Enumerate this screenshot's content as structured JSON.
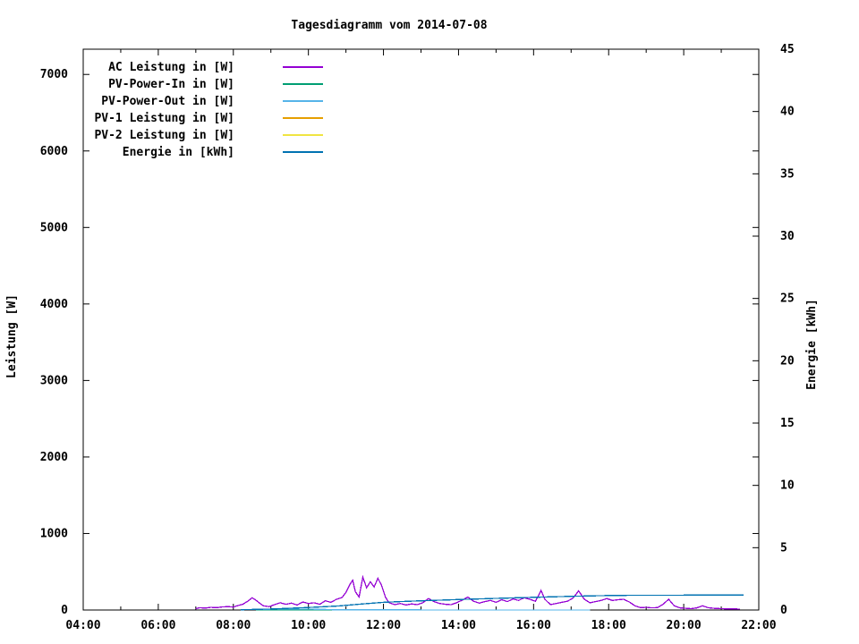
{
  "title": "Tagesdiagramm vom 2014-07-08",
  "chart_data": {
    "type": "line",
    "title": "Tagesdiagramm vom 2014-07-08",
    "background": "#ffffff",
    "grid": false,
    "legend_position": "top-left-inside",
    "x_axis": {
      "unit": "time HH:MM",
      "range_hours": [
        4,
        22
      ],
      "major_step_hours": 2,
      "minor_step_hours": 1,
      "tick_labels": [
        "04:00",
        "06:00",
        "08:00",
        "10:00",
        "12:00",
        "14:00",
        "16:00",
        "18:00",
        "20:00",
        "22:00"
      ]
    },
    "y_left_axis": {
      "label": "Leistung [W]",
      "ticks": [
        0,
        1000,
        2000,
        3000,
        4000,
        5000,
        6000,
        7000
      ],
      "range": [
        0,
        7330
      ]
    },
    "y_right_axis": {
      "label": "Energie [kWh]",
      "ticks": [
        0,
        5,
        10,
        15,
        20,
        25,
        30,
        35,
        40,
        45
      ],
      "range": [
        0,
        45
      ]
    },
    "series": [
      {
        "name": "AC Leistung in [W]",
        "color": "#9400d3",
        "axis": "left",
        "points": [
          [
            7.0,
            18
          ],
          [
            7.1,
            30
          ],
          [
            7.25,
            25
          ],
          [
            7.4,
            35
          ],
          [
            7.55,
            30
          ],
          [
            7.7,
            40
          ],
          [
            7.85,
            45
          ],
          [
            8.0,
            38
          ],
          [
            8.1,
            55
          ],
          [
            8.25,
            75
          ],
          [
            8.4,
            120
          ],
          [
            8.5,
            160
          ],
          [
            8.6,
            130
          ],
          [
            8.7,
            90
          ],
          [
            8.8,
            55
          ],
          [
            8.95,
            45
          ],
          [
            9.1,
            70
          ],
          [
            9.25,
            95
          ],
          [
            9.4,
            75
          ],
          [
            9.55,
            90
          ],
          [
            9.7,
            65
          ],
          [
            9.85,
            105
          ],
          [
            10.0,
            85
          ],
          [
            10.15,
            95
          ],
          [
            10.3,
            75
          ],
          [
            10.45,
            120
          ],
          [
            10.6,
            100
          ],
          [
            10.75,
            140
          ],
          [
            10.9,
            165
          ],
          [
            11.0,
            230
          ],
          [
            11.1,
            330
          ],
          [
            11.18,
            390
          ],
          [
            11.25,
            240
          ],
          [
            11.35,
            170
          ],
          [
            11.45,
            430
          ],
          [
            11.55,
            290
          ],
          [
            11.65,
            370
          ],
          [
            11.75,
            300
          ],
          [
            11.85,
            415
          ],
          [
            11.95,
            320
          ],
          [
            12.05,
            170
          ],
          [
            12.15,
            95
          ],
          [
            12.3,
            70
          ],
          [
            12.45,
            85
          ],
          [
            12.6,
            65
          ],
          [
            12.75,
            80
          ],
          [
            12.9,
            70
          ],
          [
            13.05,
            95
          ],
          [
            13.2,
            150
          ],
          [
            13.35,
            110
          ],
          [
            13.5,
            85
          ],
          [
            13.65,
            75
          ],
          [
            13.8,
            70
          ],
          [
            13.95,
            95
          ],
          [
            14.1,
            130
          ],
          [
            14.25,
            170
          ],
          [
            14.4,
            115
          ],
          [
            14.55,
            90
          ],
          [
            14.7,
            110
          ],
          [
            14.85,
            125
          ],
          [
            15.0,
            100
          ],
          [
            15.15,
            135
          ],
          [
            15.3,
            110
          ],
          [
            15.45,
            145
          ],
          [
            15.6,
            125
          ],
          [
            15.75,
            160
          ],
          [
            15.9,
            140
          ],
          [
            16.05,
            115
          ],
          [
            16.2,
            255
          ],
          [
            16.3,
            140
          ],
          [
            16.45,
            70
          ],
          [
            16.6,
            85
          ],
          [
            16.75,
            100
          ],
          [
            16.9,
            115
          ],
          [
            17.05,
            155
          ],
          [
            17.2,
            250
          ],
          [
            17.35,
            140
          ],
          [
            17.5,
            95
          ],
          [
            17.65,
            110
          ],
          [
            17.8,
            125
          ],
          [
            17.95,
            150
          ],
          [
            18.1,
            125
          ],
          [
            18.25,
            135
          ],
          [
            18.4,
            140
          ],
          [
            18.55,
            105
          ],
          [
            18.7,
            55
          ],
          [
            18.85,
            30
          ],
          [
            19.0,
            35
          ],
          [
            19.15,
            28
          ],
          [
            19.3,
            32
          ],
          [
            19.45,
            75
          ],
          [
            19.6,
            140
          ],
          [
            19.75,
            55
          ],
          [
            19.9,
            28
          ],
          [
            20.05,
            22
          ],
          [
            20.2,
            18
          ],
          [
            20.35,
            28
          ],
          [
            20.5,
            55
          ],
          [
            20.65,
            30
          ],
          [
            20.8,
            22
          ],
          [
            21.0,
            18
          ],
          [
            21.2,
            14
          ],
          [
            21.35,
            15
          ],
          [
            21.5,
            10
          ]
        ]
      },
      {
        "name": "PV-Power-In in [W]",
        "color": "#009e73",
        "axis": "left",
        "points": [
          [
            8.6,
            2
          ],
          [
            9.0,
            3
          ],
          [
            10.0,
            3
          ],
          [
            11.0,
            2
          ],
          [
            12.0,
            2
          ],
          [
            13.0,
            1
          ],
          [
            14.0,
            1
          ],
          [
            15.0,
            1
          ],
          [
            16.0,
            1
          ],
          [
            17.0,
            1
          ],
          [
            17.5,
            0
          ]
        ]
      },
      {
        "name": "PV-Power-Out in [W]",
        "color": "#56b4e9",
        "axis": "left",
        "points": [
          [
            8.6,
            8
          ],
          [
            9.0,
            10
          ],
          [
            9.5,
            12
          ],
          [
            10.0,
            12
          ],
          [
            10.4,
            8
          ],
          [
            10.7,
            3
          ],
          [
            11.0,
            2
          ],
          [
            12.0,
            2
          ],
          [
            13.0,
            1
          ],
          [
            14.0,
            1
          ],
          [
            15.0,
            1
          ],
          [
            16.0,
            1
          ],
          [
            17.0,
            1
          ],
          [
            17.5,
            0
          ]
        ]
      },
      {
        "name": "PV-1 Leistung in [W]",
        "color": "#e69f00",
        "axis": "left",
        "points": []
      },
      {
        "name": "PV-2 Leistung in [W]",
        "color": "#f0e442",
        "axis": "left",
        "points": []
      },
      {
        "name": "Energie in [kWh]",
        "color": "#0072b2",
        "axis": "right",
        "points": [
          [
            8.2,
            0.02
          ],
          [
            9.0,
            0.08
          ],
          [
            10.0,
            0.2
          ],
          [
            10.8,
            0.32
          ],
          [
            11.5,
            0.5
          ],
          [
            12.0,
            0.62
          ],
          [
            12.5,
            0.68
          ],
          [
            13.0,
            0.74
          ],
          [
            14.0,
            0.84
          ],
          [
            15.0,
            0.93
          ],
          [
            16.0,
            1.02
          ],
          [
            17.0,
            1.1
          ],
          [
            18.0,
            1.16
          ],
          [
            18.5,
            1.18
          ],
          [
            19.0,
            1.19
          ],
          [
            20.0,
            1.19
          ],
          [
            21.0,
            1.2
          ],
          [
            21.6,
            1.2
          ]
        ]
      }
    ]
  }
}
